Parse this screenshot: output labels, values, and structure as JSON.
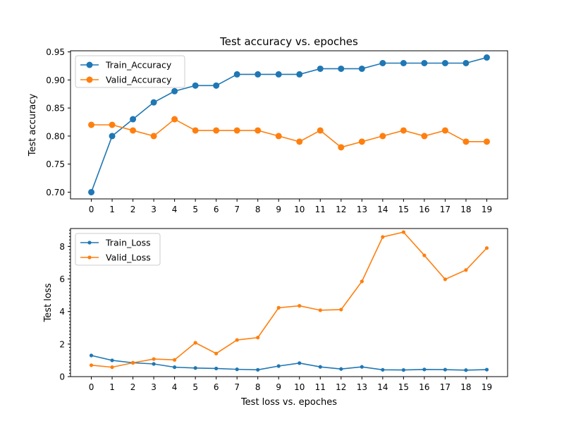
{
  "chart_data": [
    {
      "type": "line",
      "title": "Test accuracy vs. epoches",
      "xlabel": "",
      "ylabel": "Test accuracy",
      "x": [
        0,
        1,
        2,
        3,
        4,
        5,
        6,
        7,
        8,
        9,
        10,
        11,
        12,
        13,
        14,
        15,
        16,
        17,
        18,
        19
      ],
      "xticks": [
        "0",
        "1",
        "2",
        "3",
        "4",
        "5",
        "6",
        "7",
        "8",
        "9",
        "10",
        "11",
        "12",
        "13",
        "14",
        "15",
        "16",
        "17",
        "18",
        "19"
      ],
      "xlim": [
        -1,
        20
      ],
      "ylim": [
        0.688,
        0.952
      ],
      "yticks": [
        0.7,
        0.75,
        0.8,
        0.85,
        0.9,
        0.95
      ],
      "ytick_labels": [
        "0.70",
        "0.75",
        "0.80",
        "0.85",
        "0.90",
        "0.95"
      ],
      "grid": false,
      "legend_position": "top-left",
      "series": [
        {
          "name": "Train_Accuracy",
          "color": "#1f77b4",
          "marker": "circle-large",
          "values": [
            0.7,
            0.8,
            0.83,
            0.86,
            0.88,
            0.89,
            0.89,
            0.91,
            0.91,
            0.91,
            0.91,
            0.92,
            0.92,
            0.92,
            0.93,
            0.93,
            0.93,
            0.93,
            0.93,
            0.94
          ]
        },
        {
          "name": "Valid_Accuracy",
          "color": "#ff7f0e",
          "marker": "circle-large",
          "values": [
            0.82,
            0.82,
            0.81,
            0.8,
            0.83,
            0.81,
            0.81,
            0.81,
            0.81,
            0.8,
            0.79,
            0.81,
            0.78,
            0.79,
            0.8,
            0.81,
            0.8,
            0.81,
            0.79,
            0.79
          ]
        }
      ]
    },
    {
      "type": "line",
      "title": "",
      "xlabel": "Test loss vs. epoches",
      "ylabel": "Test loss",
      "x": [
        0,
        1,
        2,
        3,
        4,
        5,
        6,
        7,
        8,
        9,
        10,
        11,
        12,
        13,
        14,
        15,
        16,
        17,
        18,
        19
      ],
      "xticks": [
        "0",
        "1",
        "2",
        "3",
        "4",
        "5",
        "6",
        "7",
        "8",
        "9",
        "10",
        "11",
        "12",
        "13",
        "14",
        "15",
        "16",
        "17",
        "18",
        "19"
      ],
      "xlim": [
        -1,
        20
      ],
      "ylim": [
        0,
        9.1
      ],
      "yticks": [
        0,
        2,
        4,
        6,
        8
      ],
      "ytick_labels": [
        "0",
        "2",
        "4",
        "6",
        "8"
      ],
      "minor_ytick_step": 0.2,
      "grid": false,
      "legend_position": "top-left",
      "series": [
        {
          "name": "Train_Loss",
          "color": "#1f77b4",
          "marker": "circle-small",
          "values": [
            1.3,
            1.0,
            0.85,
            0.78,
            0.58,
            0.53,
            0.5,
            0.45,
            0.42,
            0.65,
            0.83,
            0.6,
            0.47,
            0.6,
            0.42,
            0.41,
            0.44,
            0.43,
            0.4,
            0.43
          ]
        },
        {
          "name": "Valid_Loss",
          "color": "#ff7f0e",
          "marker": "circle-small",
          "values": [
            0.7,
            0.58,
            0.85,
            1.08,
            1.03,
            2.08,
            1.42,
            2.25,
            2.4,
            4.23,
            4.35,
            4.08,
            4.12,
            5.85,
            8.58,
            8.88,
            7.45,
            5.98,
            6.55,
            7.9
          ]
        }
      ]
    }
  ]
}
